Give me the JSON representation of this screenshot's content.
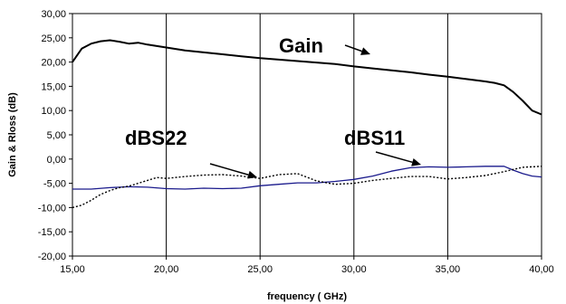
{
  "chart_data": {
    "type": "line",
    "title": "",
    "xlabel": "frequency ( GHz)",
    "ylabel": "Gain & Rloss (dB)",
    "xlim": [
      15,
      40
    ],
    "ylim": [
      -20,
      30
    ],
    "grid": "vertical",
    "xticks": [
      "15,00",
      "20,00",
      "25,00",
      "30,00",
      "35,00",
      "40,00"
    ],
    "xtick_values": [
      15,
      20,
      25,
      30,
      35,
      40
    ],
    "yticks": [
      "30,00",
      "25,00",
      "20,00",
      "15,00",
      "10,00",
      "5,00",
      "0,00",
      "-5,00",
      "-10,00",
      "-15,00",
      "-20,00"
    ],
    "ytick_values": [
      30,
      25,
      20,
      15,
      10,
      5,
      0,
      -5,
      -10,
      -15,
      -20
    ],
    "series": [
      {
        "name": "Gain",
        "color": "#000000",
        "style": "solid",
        "x": [
          15,
          15.5,
          16,
          16.5,
          17,
          17.5,
          18,
          18.5,
          19,
          20,
          21,
          22,
          23,
          24,
          25,
          26,
          27,
          28,
          29,
          30,
          31,
          32,
          33,
          34,
          35,
          36,
          37,
          37.5,
          38,
          38.5,
          39,
          39.5,
          40
        ],
        "y": [
          20.0,
          22.8,
          23.8,
          24.3,
          24.5,
          24.2,
          23.8,
          24.0,
          23.6,
          23.0,
          22.4,
          22.0,
          21.6,
          21.2,
          20.8,
          20.5,
          20.2,
          19.9,
          19.6,
          19.1,
          18.7,
          18.3,
          17.9,
          17.4,
          17.0,
          16.5,
          16.0,
          15.7,
          15.2,
          13.8,
          12.0,
          10.0,
          9.2
        ]
      },
      {
        "name": "dBS11",
        "color": "#1a1a8c",
        "style": "solid",
        "x": [
          15,
          16,
          17,
          18,
          19,
          20,
          21,
          22,
          23,
          24,
          25,
          26,
          27,
          28,
          29,
          30,
          31,
          32,
          33,
          34,
          35,
          36,
          37,
          38,
          38.5,
          39,
          39.5,
          40
        ],
        "y": [
          -6.2,
          -6.2,
          -5.9,
          -5.7,
          -5.8,
          -6.1,
          -6.2,
          -6.0,
          -6.1,
          -6.0,
          -5.5,
          -5.2,
          -4.9,
          -4.9,
          -4.6,
          -4.2,
          -3.5,
          -2.5,
          -1.8,
          -1.6,
          -1.7,
          -1.6,
          -1.5,
          -1.5,
          -2.3,
          -3.0,
          -3.5,
          -3.7
        ]
      },
      {
        "name": "dBS22",
        "color": "#000000",
        "style": "dotted",
        "x": [
          15,
          15.5,
          16,
          16.5,
          17,
          17.5,
          18,
          18.5,
          19,
          19.5,
          20,
          21,
          22,
          23,
          24,
          25,
          26,
          27,
          28,
          29,
          30,
          31,
          32,
          33,
          34,
          35,
          36,
          37,
          38,
          39,
          40
        ],
        "y": [
          -10.0,
          -9.5,
          -8.5,
          -7.3,
          -6.5,
          -5.9,
          -5.6,
          -5.0,
          -4.4,
          -3.8,
          -4.0,
          -3.6,
          -3.3,
          -3.2,
          -3.5,
          -4.0,
          -3.2,
          -3.0,
          -4.5,
          -5.2,
          -5.0,
          -4.4,
          -4.0,
          -3.6,
          -3.6,
          -4.1,
          -3.8,
          -3.4,
          -2.6,
          -1.7,
          -1.5
        ]
      }
    ],
    "annotations": [
      {
        "text": "Gain",
        "target_series": "Gain"
      },
      {
        "text": "dBS22",
        "target_series": "dBS22"
      },
      {
        "text": "dBS11",
        "target_series": "dBS11"
      }
    ]
  }
}
